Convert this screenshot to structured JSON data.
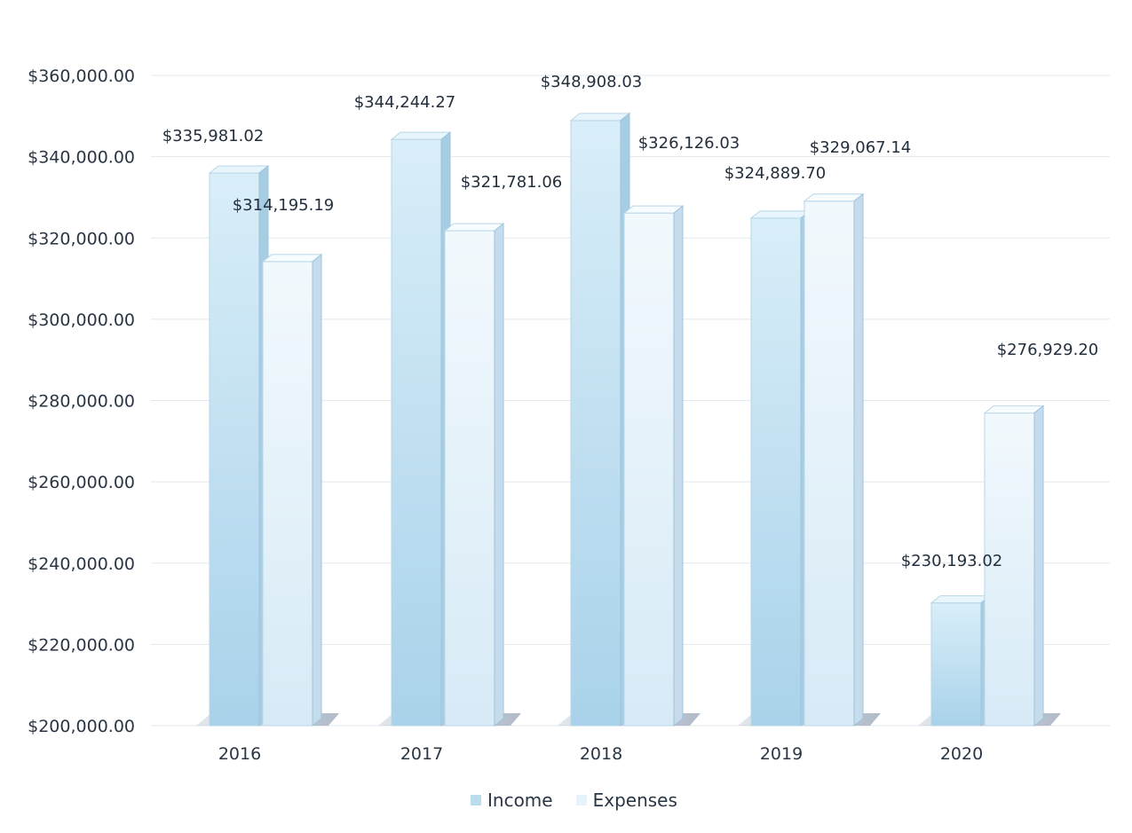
{
  "chart_data": {
    "type": "bar",
    "categories": [
      "2016",
      "2017",
      "2018",
      "2019",
      "2020"
    ],
    "series": [
      {
        "name": "Income",
        "values": [
          335981.02,
          344244.27,
          348908.03,
          324889.7,
          230193.02
        ],
        "labels": [
          "$335,981.02",
          "$344,244.27",
          "$348,908.03",
          "$324,889.70",
          "$230,193.02"
        ],
        "color": "#b9dcef"
      },
      {
        "name": "Expenses",
        "values": [
          314195.19,
          321781.06,
          326126.03,
          329067.14,
          276929.2
        ],
        "labels": [
          "$314,195.19",
          "$321,781.06",
          "$326,126.03",
          "$329,067.14",
          "$276,929.20"
        ],
        "color": "#e6f3fb"
      }
    ],
    "y_ticks": [
      {
        "value": 200000,
        "label": "$200,000.00"
      },
      {
        "value": 220000,
        "label": "$220,000.00"
      },
      {
        "value": 240000,
        "label": "$240,000.00"
      },
      {
        "value": 260000,
        "label": "$260,000.00"
      },
      {
        "value": 280000,
        "label": "$280,000.00"
      },
      {
        "value": 300000,
        "label": "$300,000.00"
      },
      {
        "value": 320000,
        "label": "$320,000.00"
      },
      {
        "value": 340000,
        "label": "$340,000.00"
      },
      {
        "value": 360000,
        "label": "$360,000.00"
      }
    ],
    "ylim": [
      200000,
      360000
    ],
    "grid": true,
    "legend_position": "bottom-center",
    "style": "3d-column"
  },
  "legend": {
    "income": "Income",
    "expenses": "Expenses"
  }
}
